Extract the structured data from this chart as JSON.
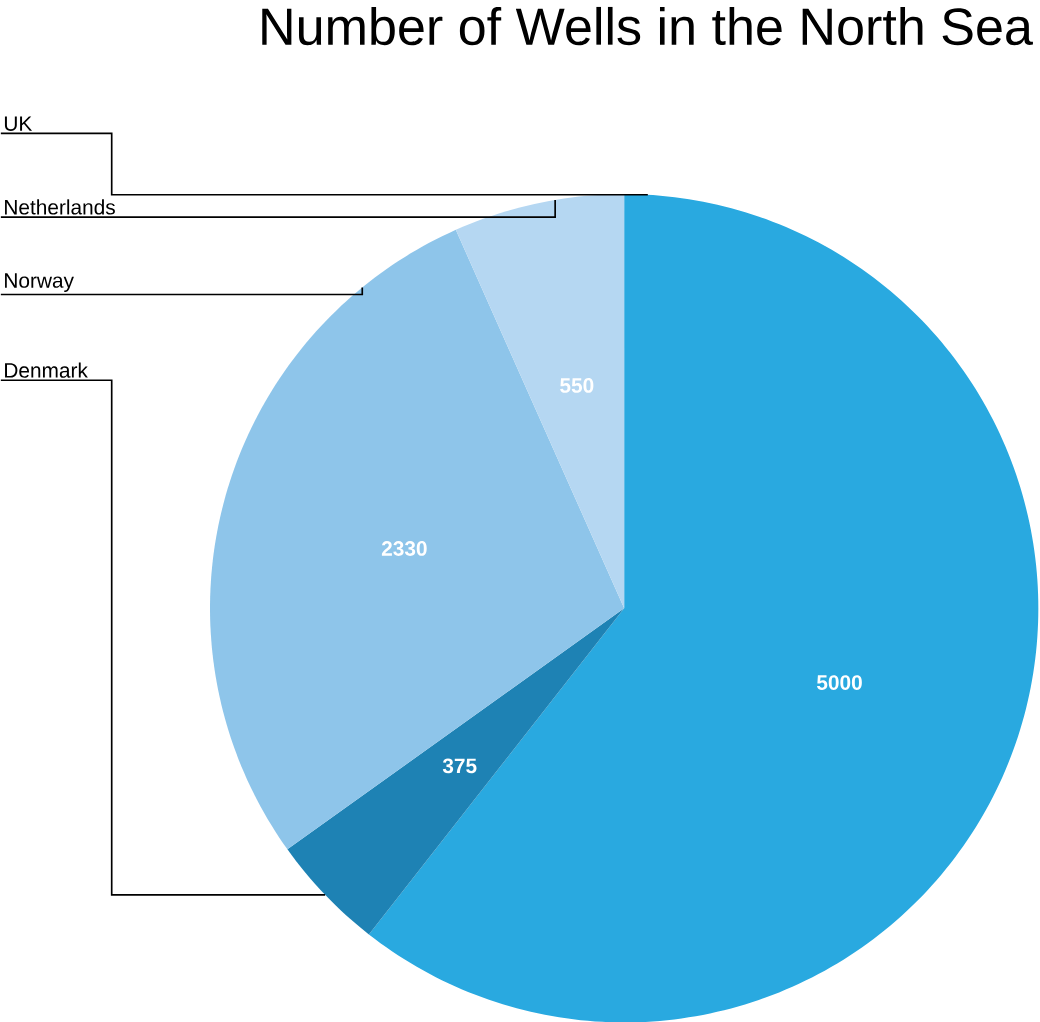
{
  "chart_data": {
    "type": "pie",
    "title": "Number of Wells in the North Sea",
    "categories": [
      "UK",
      "Denmark",
      "Norway",
      "Netherlands"
    ],
    "values": [
      5000,
      375,
      2330,
      550
    ],
    "colors": [
      "#29a9e0",
      "#1e82b4",
      "#8ec5ea",
      "#b5d7f2"
    ],
    "data_labels": true
  }
}
